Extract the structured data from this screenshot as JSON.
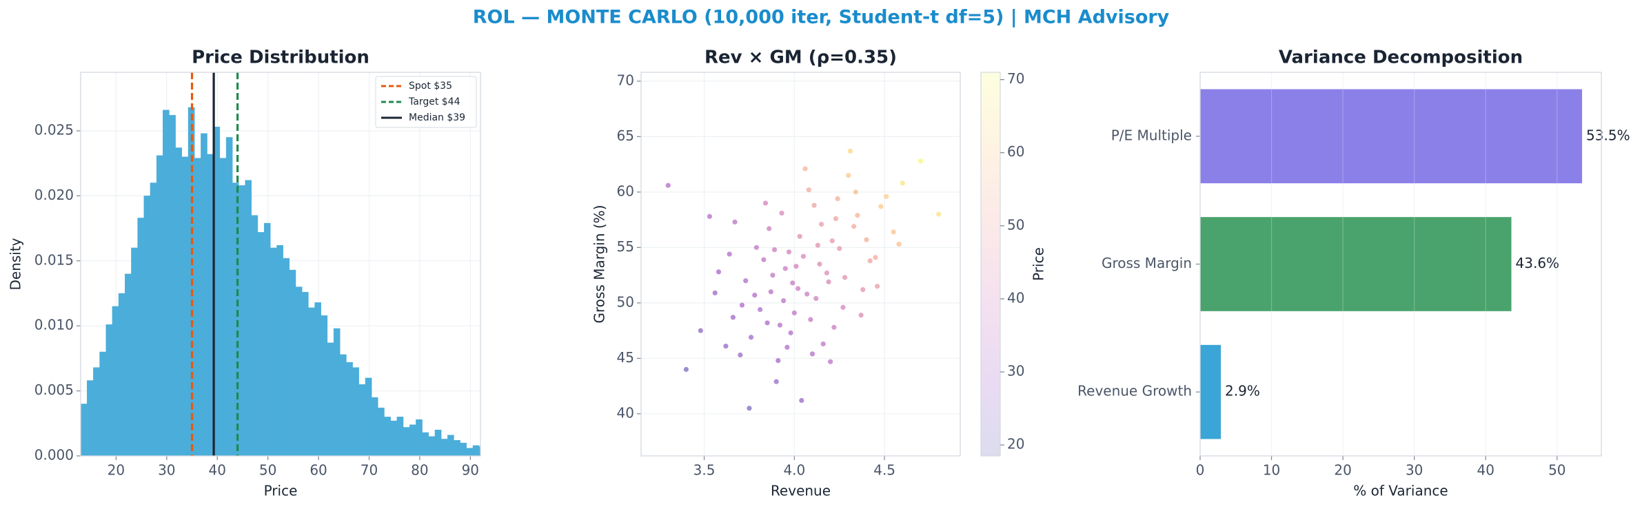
{
  "figure_title": "ROL — MONTE CARLO (10,000 iter, Student-t df=5) | MCH Advisory",
  "chart_data": [
    {
      "type": "histogram",
      "title": "Price Distribution",
      "x_label": "Price",
      "y_label": "Density",
      "bins": [
        13,
        14.25,
        15.5,
        16.75,
        18,
        19.25,
        20.5,
        21.75,
        23,
        24.25,
        25.5,
        26.75,
        28,
        29.25,
        30.5,
        31.75,
        33,
        34.25,
        35.5,
        36.75,
        38,
        39.25,
        40.5,
        41.75,
        43,
        44.25,
        45.5,
        46.75,
        48,
        49.25,
        50.5,
        51.75,
        53,
        54.25,
        55.5,
        56.75,
        58,
        59.25,
        60.5,
        61.75,
        63,
        64.25,
        65.5,
        66.75,
        68,
        69.25,
        70.5,
        71.75,
        73,
        74.25,
        75.5,
        76.75,
        78,
        79.25,
        80.5,
        81.75,
        83,
        84.25,
        85.5,
        86.75,
        88,
        89.25,
        90.5,
        91.75,
        93
      ],
      "values": [
        0.004,
        0.0058,
        0.0068,
        0.008,
        0.0101,
        0.0115,
        0.0125,
        0.014,
        0.016,
        0.0183,
        0.02,
        0.021,
        0.0231,
        0.0266,
        0.0262,
        0.0237,
        0.023,
        0.0268,
        0.0229,
        0.0248,
        0.0232,
        0.0253,
        0.0229,
        0.0245,
        0.021,
        0.0208,
        0.0212,
        0.0185,
        0.0172,
        0.0179,
        0.016,
        0.0162,
        0.0152,
        0.0143,
        0.013,
        0.0126,
        0.0114,
        0.0118,
        0.0108,
        0.0087,
        0.0098,
        0.0078,
        0.0072,
        0.0068,
        0.0055,
        0.006,
        0.0045,
        0.0037,
        0.003,
        0.0027,
        0.003,
        0.0022,
        0.0024,
        0.0028,
        0.0018,
        0.0015,
        0.002,
        0.0013,
        0.0016,
        0.0012,
        0.001,
        0.0006,
        0.0008,
        0.0007
      ],
      "color": "#4badd9",
      "xlim": [
        13,
        92
      ],
      "ylim": [
        0,
        0.0295
      ],
      "xticks": [
        20,
        30,
        40,
        50,
        60,
        70,
        80,
        90
      ],
      "yticks": [
        {
          "value": 0,
          "label": "0.000"
        },
        0.005,
        {
          "value": 0.01,
          "label": "0.010"
        },
        0.015,
        {
          "value": 0.02,
          "label": "0.020"
        },
        0.025
      ],
      "grid": true,
      "legend": "upper right",
      "lines": [
        {
          "name": "Spot $35",
          "value": 35,
          "color": "#e8590c",
          "style": "dashed"
        },
        {
          "name": "Target $44",
          "value": 44,
          "color": "#1e8a4c",
          "style": "dashed"
        },
        {
          "name": "Median $39",
          "value": 39.3,
          "color": "#1a2433",
          "style": "solid"
        }
      ]
    },
    {
      "type": "scatter",
      "title": "Rev × GM (ρ=0.35)",
      "x_label": "Revenue",
      "y_label": "Gross Margin (%)",
      "x": [
        4.02,
        3.85,
        4.21,
        3.71,
        4.35,
        3.95,
        4.12,
        3.62,
        4.48,
        4.05,
        3.88,
        4.27,
        3.79,
        4.15,
        3.98,
        4.42,
        3.56,
        4.08,
        3.91,
        4.3,
        4.0,
        3.83,
        4.18,
        3.67,
        4.55,
        3.94,
        4.25,
        3.76,
        4.11,
        4.38,
        3.48,
        4.03,
        3.87,
        4.22,
        4.6,
        3.97,
        3.73,
        4.14,
        4.33,
        3.9,
        4.06,
        3.81,
        4.45,
        3.99,
        4.2,
        3.64,
        4.09,
        4.51,
        3.86,
        4.28,
        3.4,
        4.7,
        3.93,
        4.16,
        3.78,
        4.37,
        4.01,
        3.58,
        4.24,
        3.96,
        4.4,
        3.7,
        4.13,
        4.8,
        3.84,
        4.07,
        3.3,
        4.31,
        4.04,
        3.92,
        4.19,
        3.53,
        4.46,
        3.89,
        4.58,
        4.1,
        3.66,
        4.23,
        3.75,
        4.34
      ],
      "y": [
        51.3,
        48.2,
        55.6,
        49.8,
        57.9,
        53.1,
        50.4,
        46.1,
        58.7,
        54.2,
        52.5,
        49.6,
        55.0,
        57.1,
        47.3,
        53.8,
        50.9,
        60.2,
        44.8,
        61.5,
        49.1,
        53.9,
        52.7,
        57.3,
        56.4,
        50.2,
        54.9,
        46.9,
        58.8,
        51.2,
        47.5,
        56.0,
        51.0,
        47.8,
        60.8,
        54.6,
        52.0,
        53.5,
        56.9,
        42.9,
        62.1,
        49.4,
        54.1,
        51.8,
        44.7,
        54.4,
        48.5,
        59.6,
        56.7,
        52.3,
        44.0,
        62.8,
        58.1,
        46.3,
        50.7,
        48.9,
        53.3,
        52.8,
        59.4,
        46.0,
        55.7,
        45.3,
        55.2,
        58.0,
        59.0,
        50.8,
        60.6,
        63.7,
        41.2,
        48.0,
        51.9,
        57.8,
        51.5,
        54.8,
        55.3,
        45.4,
        48.7,
        57.6,
        40.5,
        60.0
      ],
      "c": [
        38,
        30,
        47,
        30,
        55,
        38,
        39,
        25,
        60,
        42,
        35,
        41,
        36,
        48,
        32,
        50,
        27,
        52,
        28,
        60,
        35,
        35,
        43,
        34,
        58,
        34,
        47,
        28,
        50,
        46,
        24,
        44,
        33,
        38,
        66,
        40,
        31,
        43,
        52,
        26,
        55,
        31,
        52,
        37,
        34,
        31,
        36,
        61,
        38,
        45,
        21,
        70,
        42,
        35,
        31,
        43,
        40,
        29,
        53,
        31,
        53,
        26,
        45,
        66,
        40,
        38,
        32,
        63,
        26,
        32,
        42,
        32,
        48,
        38,
        57,
        32,
        28,
        50,
        22,
        58
      ],
      "colormap": "plasma",
      "clim": [
        18.5,
        71
      ],
      "cticks": [
        20,
        30,
        40,
        50,
        60,
        70
      ],
      "c_label": "Price",
      "xlim": [
        3.15,
        4.92
      ],
      "ylim": [
        36.2,
        70.8
      ],
      "xticks": [
        3.5,
        {
          "value": 4,
          "label": "4.0"
        },
        4.5
      ],
      "yticks": [
        40,
        45,
        50,
        55,
        60,
        65,
        70
      ],
      "grid": true
    },
    {
      "type": "barh",
      "title": "Variance Decomposition",
      "x_label": "% of Variance",
      "categories": [
        "P/E Multiple",
        "Gross Margin",
        "Revenue Growth"
      ],
      "values": [
        53.5,
        43.6,
        2.9
      ],
      "value_labels": [
        "53.5%",
        "43.6%",
        "2.9%"
      ],
      "colors": [
        "#8b7fe8",
        "#4aa36c",
        "#3aa5d6"
      ],
      "xlim": [
        0,
        56.2
      ],
      "xticks": [
        0,
        10,
        20,
        30,
        40,
        50
      ],
      "grid": true
    }
  ]
}
